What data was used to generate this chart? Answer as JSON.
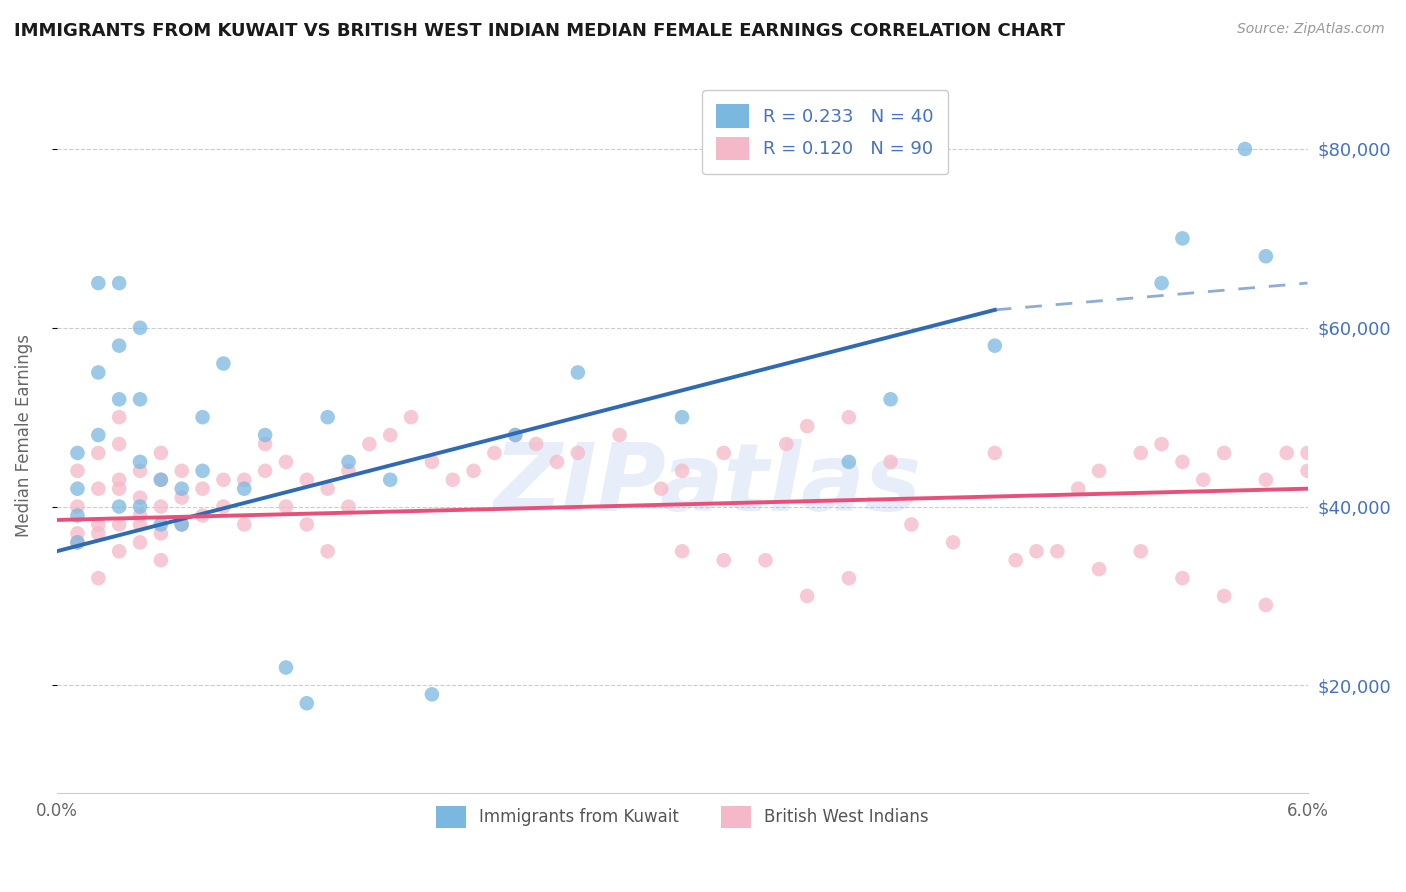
{
  "title": "IMMIGRANTS FROM KUWAIT VS BRITISH WEST INDIAN MEDIAN FEMALE EARNINGS CORRELATION CHART",
  "source": "Source: ZipAtlas.com",
  "ylabel": "Median Female Earnings",
  "xlim": [
    0.0,
    0.06
  ],
  "ylim": [
    8000,
    88000
  ],
  "color_kuwait": "#7ab8e0",
  "color_bwi": "#f5b8c8",
  "color_kuwait_line": "#2f6bb5",
  "color_bwi_line": "#e8507a",
  "color_right_labels": "#4472c4",
  "color_grid": "#cccccc",
  "background_color": "#ffffff",
  "watermark_text": "ZIPatlas",
  "watermark_color": "#a0bce8",
  "watermark_alpha": 0.25,
  "kuwait_line_x0": 0.0,
  "kuwait_line_y0": 35000,
  "kuwait_line_x1": 0.045,
  "kuwait_line_y1": 62000,
  "kuwait_line_xd": 0.06,
  "kuwait_line_yd": 65000,
  "bwi_line_x0": 0.0,
  "bwi_line_y0": 38500,
  "bwi_line_x1": 0.06,
  "bwi_line_y1": 42000,
  "kuwait_scatter_x": [
    0.001,
    0.001,
    0.001,
    0.001,
    0.002,
    0.002,
    0.002,
    0.003,
    0.003,
    0.003,
    0.003,
    0.004,
    0.004,
    0.004,
    0.004,
    0.005,
    0.005,
    0.006,
    0.006,
    0.007,
    0.007,
    0.008,
    0.009,
    0.01,
    0.011,
    0.012,
    0.013,
    0.014,
    0.016,
    0.018,
    0.022,
    0.025,
    0.03,
    0.038,
    0.04,
    0.045,
    0.053,
    0.054,
    0.057,
    0.058
  ],
  "kuwait_scatter_y": [
    36000,
    39000,
    42000,
    46000,
    55000,
    48000,
    65000,
    40000,
    52000,
    58000,
    65000,
    40000,
    45000,
    52000,
    60000,
    38000,
    43000,
    38000,
    42000,
    44000,
    50000,
    56000,
    42000,
    48000,
    22000,
    18000,
    50000,
    45000,
    43000,
    19000,
    48000,
    55000,
    50000,
    45000,
    52000,
    58000,
    65000,
    70000,
    80000,
    68000
  ],
  "bwi_scatter_x": [
    0.001,
    0.001,
    0.001,
    0.001,
    0.002,
    0.002,
    0.002,
    0.002,
    0.002,
    0.003,
    0.003,
    0.003,
    0.003,
    0.003,
    0.003,
    0.004,
    0.004,
    0.004,
    0.004,
    0.004,
    0.005,
    0.005,
    0.005,
    0.005,
    0.005,
    0.006,
    0.006,
    0.006,
    0.007,
    0.007,
    0.008,
    0.008,
    0.009,
    0.009,
    0.01,
    0.01,
    0.011,
    0.011,
    0.012,
    0.012,
    0.013,
    0.013,
    0.014,
    0.014,
    0.015,
    0.016,
    0.017,
    0.018,
    0.019,
    0.02,
    0.021,
    0.022,
    0.023,
    0.024,
    0.025,
    0.027,
    0.029,
    0.03,
    0.032,
    0.034,
    0.035,
    0.036,
    0.038,
    0.04,
    0.041,
    0.043,
    0.045,
    0.047,
    0.049,
    0.05,
    0.052,
    0.053,
    0.054,
    0.055,
    0.056,
    0.058,
    0.059,
    0.06,
    0.046,
    0.048,
    0.05,
    0.052,
    0.054,
    0.056,
    0.058,
    0.06,
    0.03,
    0.032,
    0.036,
    0.038
  ],
  "bwi_scatter_y": [
    37000,
    40000,
    44000,
    36000,
    32000,
    37000,
    42000,
    46000,
    38000,
    35000,
    38000,
    42000,
    47000,
    43000,
    50000,
    36000,
    39000,
    41000,
    44000,
    38000,
    37000,
    40000,
    43000,
    46000,
    34000,
    38000,
    41000,
    44000,
    39000,
    42000,
    40000,
    43000,
    43000,
    38000,
    44000,
    47000,
    45000,
    40000,
    43000,
    38000,
    42000,
    35000,
    44000,
    40000,
    47000,
    48000,
    50000,
    45000,
    43000,
    44000,
    46000,
    48000,
    47000,
    45000,
    46000,
    48000,
    42000,
    44000,
    46000,
    34000,
    47000,
    49000,
    50000,
    45000,
    38000,
    36000,
    46000,
    35000,
    42000,
    44000,
    46000,
    47000,
    45000,
    43000,
    46000,
    43000,
    46000,
    44000,
    34000,
    35000,
    33000,
    35000,
    32000,
    30000,
    29000,
    46000,
    35000,
    34000,
    30000,
    32000
  ]
}
